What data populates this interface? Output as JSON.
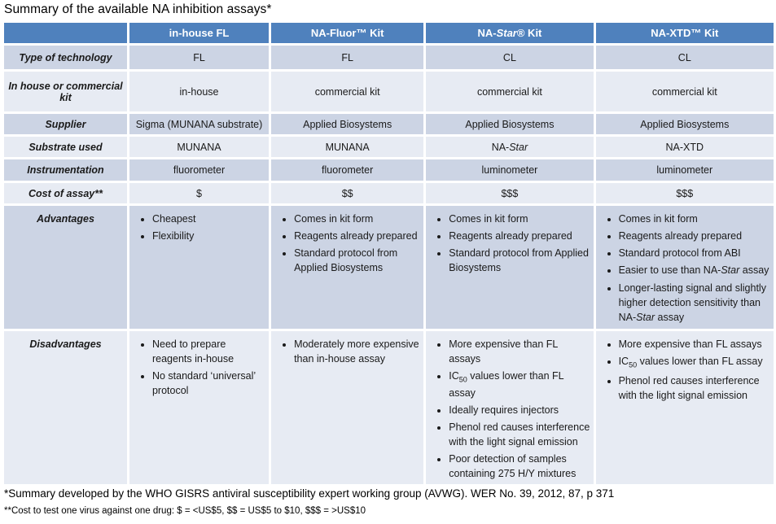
{
  "page": {
    "title": "Summary of the available NA inhibition assays*"
  },
  "colors": {
    "header_bg": "#4F81BD",
    "header_text": "#FFFFFF",
    "band_dark": "#CCD4E4",
    "band_light": "#E7EBF3",
    "body_text": "#1A1A1A"
  },
  "table": {
    "header": [
      "",
      "in-house FL",
      "NA-Fluor™ Kit",
      "NA-<i>Star</i>® Kit",
      "NA-XTD™ Kit"
    ],
    "rows": [
      {
        "label": "Type of technology",
        "cells": [
          "FL",
          "FL",
          "CL",
          "CL"
        ]
      },
      {
        "label": "In house or commercial kit",
        "cells": [
          "in-house",
          "commercial kit",
          "commercial kit",
          "commercial kit"
        ]
      },
      {
        "label": "Supplier",
        "cells": [
          "Sigma (MUNANA substrate)",
          "Applied Biosystems",
          "Applied Biosystems",
          "Applied Biosystems"
        ]
      },
      {
        "label": "Substrate used",
        "cells": [
          "MUNANA",
          "MUNANA",
          "NA-<i>Star</i>",
          "NA-XTD"
        ]
      },
      {
        "label": "Instrumentation",
        "cells": [
          "fluorometer",
          "fluorometer",
          "luminometer",
          "luminometer"
        ]
      },
      {
        "label": "Cost of assay**",
        "cells": [
          "$",
          "$$",
          "$$$",
          "$$$"
        ]
      },
      {
        "label": "Advantages",
        "lists": [
          [
            "Cheapest",
            "Flexibility"
          ],
          [
            "Comes in kit form",
            "Reagents already prepared",
            "Standard protocol from Applied Biosystems"
          ],
          [
            "Comes in kit form",
            "Reagents already prepared",
            "Standard protocol from Applied Biosystems"
          ],
          [
            "Comes in kit form",
            "Reagents already prepared",
            "Standard protocol from ABI",
            "Easier to use than NA-<i>Star</i> assay",
            "Longer-lasting signal and slightly higher detection sensitivity than NA-<i>Star</i> assay"
          ]
        ]
      },
      {
        "label": "Disadvantages",
        "lists": [
          [
            "Need to prepare reagents in-house",
            "No standard ‘universal’ protocol"
          ],
          [
            "Moderately more expensive than in-house assay"
          ],
          [
            "More expensive than FL assays",
            "IC<sub>50</sub> values lower than FL assay",
            "Ideally requires injectors",
            "Phenol red causes interference with the light signal emission",
            "Poor detection of samples containing 275 H/Y mixtures"
          ],
          [
            "More expensive than FL assays",
            "IC<sub>50</sub> values lower than FL assay",
            "Phenol red causes interference with the light signal emission"
          ]
        ]
      }
    ]
  },
  "footnotes": {
    "line1": "*Summary developed by the WHO GISRS antiviral susceptibility expert working group (AVWG). WER No. 39, 2012, 87, p 371",
    "line2": "**Cost to test one virus against one drug: $ = <US$5, $$ = US$5 to $10, $$$ = >US$10"
  }
}
